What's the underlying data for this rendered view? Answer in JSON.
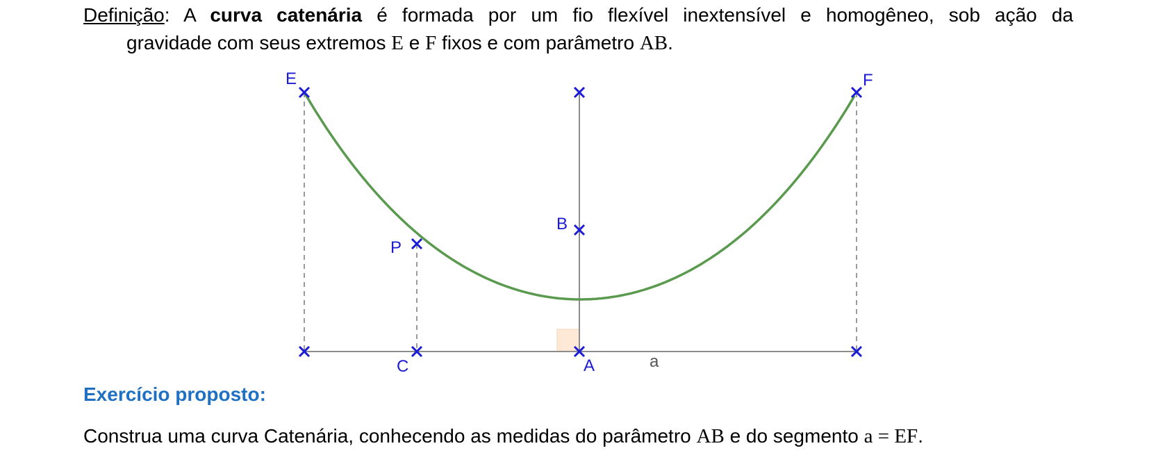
{
  "definition": {
    "label": "Definição",
    "colon": ": A ",
    "term": "curva catenária",
    "text1": " é formada por um fio flexível inextensível e homogêneo, sob ação da",
    "text2a": "gravidade com seus extremos ",
    "E": "E",
    "text2b": " e ",
    "F": "F",
    "text2c": " fixos e com parâmetro ",
    "AB": "AB",
    "text2d": "."
  },
  "figure": {
    "points": {
      "E": "E",
      "F": "F",
      "B": "B",
      "P": "P",
      "C": "C",
      "A": "A"
    },
    "segment_label": "a",
    "colors": {
      "curve": "#5a9a4e",
      "points": "#1b1bd6",
      "axis": "#8c8c8c",
      "dashed": "#9a9a9a",
      "right_angle": "#fde9d6"
    }
  },
  "exercise": {
    "heading": "Exercício proposto:",
    "text1": "Construa uma curva Catenária, conhecendo as medidas do parâmetro ",
    "AB": "AB",
    "text2": " e do segmento ",
    "expr": "a = EF",
    "text3": "."
  }
}
